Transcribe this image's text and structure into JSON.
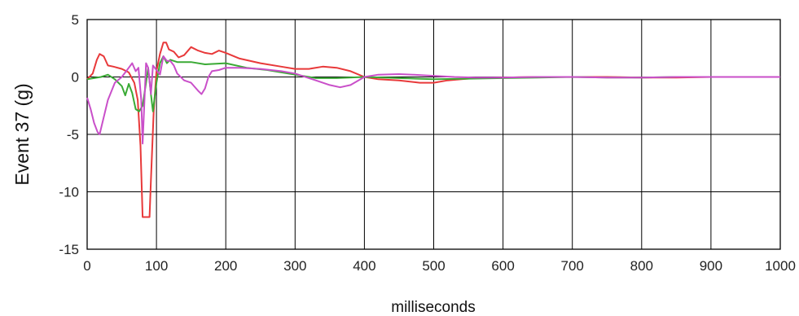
{
  "chart_data": {
    "type": "line",
    "title": "",
    "xlabel": "milliseconds",
    "ylabel": "Event 37 (g)",
    "xlim": [
      0,
      1000
    ],
    "ylim": [
      -15,
      5
    ],
    "xticks": [
      0,
      100,
      200,
      300,
      400,
      500,
      600,
      700,
      800,
      900,
      1000
    ],
    "yticks": [
      5,
      0,
      -5,
      -10,
      -15
    ],
    "grid": true,
    "legend": "none",
    "series": [
      {
        "color": "#e8393a",
        "x": [
          0,
          8,
          14,
          18,
          24,
          30,
          38,
          50,
          60,
          68,
          73,
          77,
          80,
          84,
          86,
          88,
          90,
          92,
          96,
          100,
          105,
          110,
          114,
          118,
          125,
          132,
          140,
          150,
          160,
          170,
          180,
          190,
          200,
          220,
          250,
          280,
          300,
          320,
          340,
          360,
          380,
          400,
          420,
          450,
          480,
          500,
          520,
          540,
          560,
          600,
          650,
          700,
          750,
          800,
          850,
          900,
          950,
          1000
        ],
        "y": [
          -0.2,
          0.3,
          1.5,
          2.0,
          1.8,
          1.0,
          0.9,
          0.7,
          0.4,
          -0.5,
          -2.0,
          -6.0,
          -12.2,
          -12.2,
          -12.2,
          -12.2,
          -12.2,
          -9.0,
          -3.0,
          0.5,
          2.0,
          3.0,
          3.0,
          2.4,
          2.2,
          1.7,
          1.9,
          2.6,
          2.3,
          2.1,
          2.0,
          2.3,
          2.1,
          1.6,
          1.2,
          0.9,
          0.7,
          0.7,
          0.9,
          0.8,
          0.5,
          0.0,
          -0.2,
          -0.3,
          -0.5,
          -0.5,
          -0.3,
          -0.2,
          -0.1,
          -0.05,
          0.0,
          0.0,
          0.0,
          -0.05,
          -0.05,
          0.0,
          0.0,
          0.0
        ]
      },
      {
        "color": "#3aaa35",
        "x": [
          0,
          10,
          20,
          30,
          40,
          50,
          55,
          60,
          65,
          70,
          75,
          80,
          85,
          88,
          92,
          95,
          100,
          105,
          110,
          115,
          120,
          130,
          150,
          170,
          200,
          230,
          260,
          300,
          330,
          360,
          400,
          450,
          500,
          550,
          600,
          650,
          700,
          750,
          800,
          850,
          900,
          950,
          1000
        ],
        "y": [
          -0.2,
          -0.1,
          0.0,
          0.2,
          -0.2,
          -0.8,
          -1.6,
          -0.6,
          -1.4,
          -2.8,
          -3.0,
          -2.5,
          -0.5,
          0.8,
          -1.5,
          -3.0,
          -0.5,
          1.2,
          1.8,
          1.2,
          1.5,
          1.3,
          1.3,
          1.1,
          1.2,
          0.8,
          0.6,
          0.2,
          -0.1,
          -0.1,
          0.0,
          -0.1,
          -0.2,
          -0.15,
          -0.1,
          -0.05,
          0.0,
          -0.05,
          -0.05,
          0.0,
          0.0,
          0.0,
          0.0
        ]
      },
      {
        "color": "#c94fc9",
        "x": [
          0,
          5,
          10,
          15,
          18,
          22,
          30,
          40,
          50,
          60,
          65,
          70,
          74,
          78,
          80,
          82,
          85,
          88,
          92,
          95,
          100,
          105,
          110,
          115,
          120,
          125,
          130,
          140,
          150,
          160,
          165,
          170,
          175,
          180,
          190,
          200,
          220,
          250,
          280,
          300,
          330,
          350,
          365,
          380,
          400,
          420,
          450,
          470,
          500,
          530,
          560,
          600,
          650,
          700,
          750,
          800,
          850,
          900,
          950,
          1000
        ],
        "y": [
          -1.8,
          -2.8,
          -4.0,
          -4.8,
          -5.0,
          -4.0,
          -2.0,
          -0.5,
          0.0,
          0.8,
          1.2,
          0.5,
          0.8,
          -2.0,
          -5.8,
          -3.0,
          1.2,
          0.8,
          -1.5,
          1.0,
          0.6,
          0.2,
          1.8,
          1.4,
          1.4,
          1.0,
          0.3,
          -0.3,
          -0.5,
          -1.2,
          -1.5,
          -1.0,
          0.0,
          0.5,
          0.6,
          0.8,
          0.8,
          0.7,
          0.5,
          0.3,
          -0.3,
          -0.7,
          -0.9,
          -0.7,
          0.0,
          0.2,
          0.25,
          0.2,
          0.1,
          0.0,
          -0.05,
          -0.05,
          0.0,
          0.0,
          -0.05,
          -0.05,
          0.0,
          0.0,
          0.0,
          0.0
        ]
      }
    ]
  }
}
